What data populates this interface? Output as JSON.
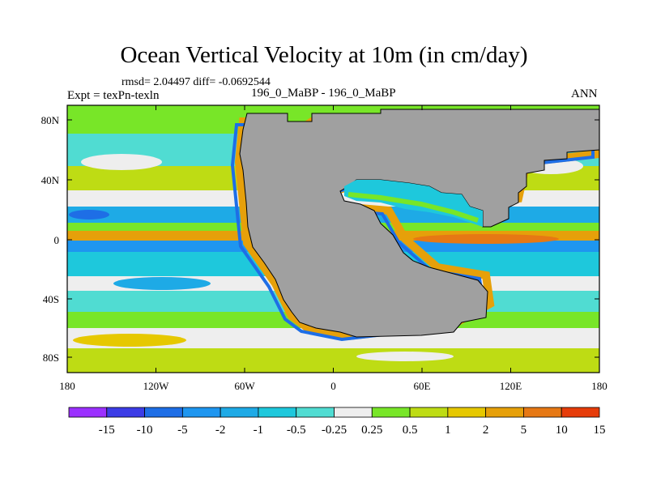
{
  "figure": {
    "title": "Ocean Vertical Velocity at 10m (in cm/day)",
    "stats": "rmsd= 2.04497 diff= -0.0692544",
    "expt": "Expt = texPn-texln",
    "case": "196_0_MaBP - 196_0_MaBP",
    "season": "ANN"
  },
  "axes": {
    "lon_labels": [
      "180",
      "120W",
      "60W",
      "0",
      "60E",
      "120E",
      "180"
    ],
    "lat_labels": [
      "80N",
      "40N",
      "0",
      "40S",
      "80S"
    ]
  },
  "colorbar": {
    "labels": [
      "-15",
      "-10",
      "-5",
      "-2",
      "-1",
      "-0.5",
      "-0.25",
      "0.25",
      "0.5",
      "1",
      "2",
      "5",
      "10",
      "15"
    ],
    "colors": [
      "#9b30ff",
      "#3c3ce6",
      "#1e6ee6",
      "#1e96f0",
      "#1eaae6",
      "#1ec8dc",
      "#50dcd2",
      "#eeeeee",
      "#78e628",
      "#bedc14",
      "#e6c800",
      "#e6a00a",
      "#e67814",
      "#e63c0a"
    ]
  },
  "land_color": "#a0a0a0"
}
